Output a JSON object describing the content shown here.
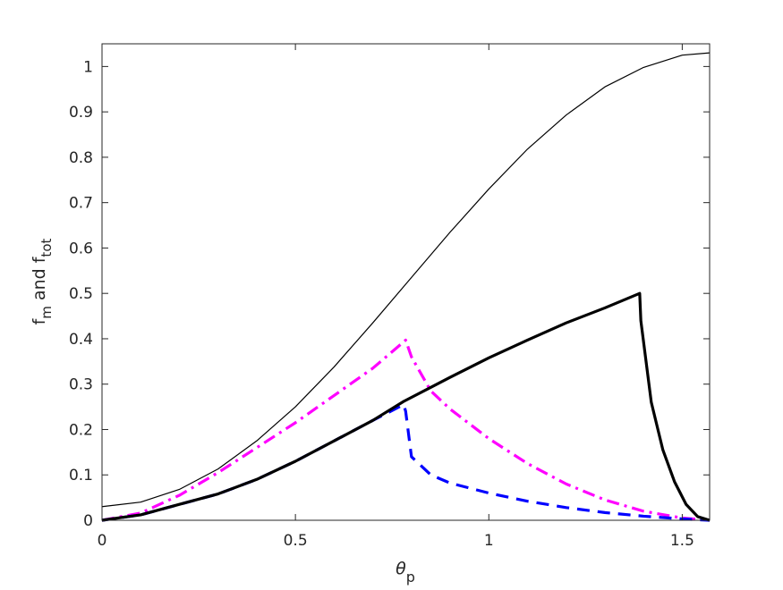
{
  "chart_data": {
    "type": "line",
    "xlabel": {
      "main": "θ",
      "sub": "p"
    },
    "ylabel": {
      "parts": [
        "f",
        "m",
        " and f",
        "tot"
      ]
    },
    "xlim": [
      0,
      1.5708
    ],
    "ylim": [
      0,
      1.05
    ],
    "xticks": [
      0,
      0.5,
      1,
      1.5
    ],
    "xtick_labels": [
      "0",
      "0.5",
      "1",
      "1.5"
    ],
    "yticks": [
      0,
      0.1,
      0.2,
      0.3,
      0.4,
      0.5,
      0.6,
      0.7,
      0.8,
      0.9,
      1
    ],
    "ytick_labels": [
      "0",
      "0.1",
      "0.2",
      "0.3",
      "0.4",
      "0.5",
      "0.6",
      "0.7",
      "0.8",
      "0.9",
      "1"
    ],
    "grid": false,
    "series": [
      {
        "color": "#000000",
        "style": "solid-thin",
        "x": [
          0,
          0.1,
          0.2,
          0.3,
          0.4,
          0.5,
          0.6,
          0.7,
          0.8,
          0.9,
          1.0,
          1.1,
          1.2,
          1.3,
          1.4,
          1.5,
          1.5708
        ],
        "y": [
          0.03,
          0.04,
          0.068,
          0.113,
          0.175,
          0.25,
          0.338,
          0.435,
          0.535,
          0.635,
          0.73,
          0.818,
          0.893,
          0.955,
          0.998,
          1.025,
          1.03
        ]
      },
      {
        "color": "#000000",
        "style": "solid-thick",
        "x": [
          0,
          0.1,
          0.2,
          0.3,
          0.4,
          0.5,
          0.6,
          0.7,
          0.78,
          0.85,
          0.9,
          1.0,
          1.1,
          1.2,
          1.3,
          1.39,
          1.393,
          1.42,
          1.45,
          1.48,
          1.51,
          1.54,
          1.5708
        ],
        "y": [
          0.0,
          0.012,
          0.035,
          0.058,
          0.09,
          0.13,
          0.175,
          0.22,
          0.262,
          0.293,
          0.315,
          0.358,
          0.397,
          0.435,
          0.468,
          0.5,
          0.44,
          0.26,
          0.155,
          0.085,
          0.035,
          0.008,
          0.0
        ]
      },
      {
        "color": "#0000FF",
        "style": "dashed",
        "x": [
          0,
          0.1,
          0.2,
          0.3,
          0.4,
          0.5,
          0.6,
          0.7,
          0.78,
          0.785,
          0.8,
          0.85,
          0.9,
          1.0,
          1.1,
          1.2,
          1.3,
          1.4,
          1.5,
          1.5708
        ],
        "y": [
          0.0,
          0.012,
          0.035,
          0.058,
          0.09,
          0.13,
          0.175,
          0.22,
          0.255,
          0.24,
          0.14,
          0.1,
          0.082,
          0.06,
          0.042,
          0.028,
          0.017,
          0.009,
          0.003,
          0.0
        ]
      },
      {
        "color": "#FF00FF",
        "style": "dashdot",
        "x": [
          0,
          0.1,
          0.2,
          0.3,
          0.4,
          0.5,
          0.6,
          0.7,
          0.785,
          0.8,
          0.85,
          0.9,
          1.0,
          1.1,
          1.2,
          1.3,
          1.4,
          1.5,
          1.5708
        ],
        "y": [
          0.0,
          0.016,
          0.055,
          0.105,
          0.16,
          0.215,
          0.275,
          0.335,
          0.397,
          0.36,
          0.285,
          0.245,
          0.18,
          0.125,
          0.08,
          0.045,
          0.02,
          0.005,
          0.0
        ]
      }
    ]
  }
}
